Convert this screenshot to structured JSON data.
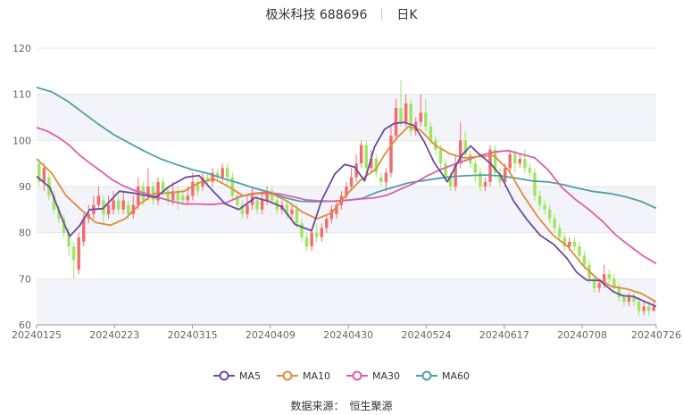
{
  "header": {
    "title": "极米科技 688696",
    "period": "日K"
  },
  "source": {
    "label": "数据来源：",
    "value": "恒生聚源"
  },
  "colors": {
    "up": "#f26d6d",
    "down": "#9ee65f",
    "grid": "#e6e6e6",
    "band": "#f3f4f9",
    "ma5": "#6b4a9e",
    "ma10": "#e08a3c",
    "ma30": "#d95fae",
    "ma60": "#4f9fa6"
  },
  "chart_data": {
    "type": "candlestick",
    "ylim": [
      60,
      120
    ],
    "yticks": [
      60,
      70,
      80,
      90,
      100,
      110,
      120
    ],
    "xtick_labels": [
      "20240125",
      "20240223",
      "20240315",
      "20240409",
      "20240430",
      "20240524",
      "20240617",
      "20240708",
      "20240726"
    ],
    "xtick_positions": [
      0,
      20,
      40,
      60,
      80,
      100,
      120,
      140,
      159
    ],
    "legend": [
      "MA5",
      "MA10",
      "MA30",
      "MA60"
    ],
    "candles": [
      [
        95,
        91,
        96,
        90
      ],
      [
        91,
        94,
        95,
        89
      ],
      [
        92,
        88,
        93,
        87
      ],
      [
        88,
        85,
        89,
        84
      ],
      [
        85,
        83,
        86,
        82
      ],
      [
        83,
        80,
        84,
        79
      ],
      [
        80,
        77,
        81,
        75
      ],
      [
        77,
        74,
        78,
        70
      ],
      [
        72,
        79,
        80,
        71
      ],
      [
        78,
        83,
        84,
        77
      ],
      [
        83,
        84,
        86,
        82
      ],
      [
        84,
        86,
        88,
        83
      ],
      [
        86,
        88,
        90,
        85
      ],
      [
        87,
        84,
        88,
        82
      ],
      [
        84,
        86,
        88,
        83
      ],
      [
        85,
        87,
        89,
        84
      ],
      [
        87,
        85,
        88,
        84
      ],
      [
        85,
        87,
        89,
        84
      ],
      [
        86,
        84,
        87,
        83
      ],
      [
        84,
        86,
        88,
        83
      ],
      [
        86,
        90,
        92,
        85
      ],
      [
        90,
        87,
        91,
        86
      ],
      [
        88,
        90,
        94,
        87
      ],
      [
        90,
        87,
        91,
        86
      ],
      [
        87,
        91,
        92,
        86
      ],
      [
        91,
        89,
        92,
        88
      ],
      [
        89,
        87,
        90,
        86
      ],
      [
        87,
        89,
        91,
        86
      ],
      [
        89,
        87,
        90,
        85
      ],
      [
        88,
        87,
        89,
        86
      ],
      [
        87,
        88,
        90,
        86
      ],
      [
        88,
        91,
        93,
        87
      ],
      [
        91,
        89,
        92,
        88
      ],
      [
        90,
        92,
        93,
        89
      ],
      [
        92,
        91,
        93,
        90
      ],
      [
        91,
        93,
        94,
        90
      ],
      [
        93,
        92,
        94,
        91
      ],
      [
        92,
        94,
        95,
        91
      ],
      [
        94,
        92,
        95,
        90
      ],
      [
        92,
        88,
        93,
        87
      ],
      [
        88,
        86,
        89,
        85
      ],
      [
        86,
        84,
        87,
        83
      ],
      [
        84,
        86,
        88,
        83
      ],
      [
        86,
        88,
        90,
        85
      ],
      [
        87,
        85,
        88,
        84
      ],
      [
        85,
        87,
        89,
        84
      ],
      [
        87,
        89,
        90,
        86
      ],
      [
        89,
        87,
        90,
        86
      ],
      [
        87,
        85,
        88,
        84
      ],
      [
        85,
        86,
        87,
        84
      ],
      [
        86,
        84,
        87,
        83
      ],
      [
        84,
        85,
        86,
        83
      ],
      [
        85,
        82,
        86,
        81
      ],
      [
        82,
        79,
        83,
        78
      ],
      [
        79,
        77,
        80,
        76
      ],
      [
        77,
        80,
        81,
        76
      ],
      [
        80,
        79,
        82,
        78
      ],
      [
        79,
        81,
        82,
        78
      ],
      [
        81,
        83,
        84,
        80
      ],
      [
        83,
        85,
        86,
        82
      ],
      [
        84,
        86,
        87,
        83
      ],
      [
        86,
        88,
        89,
        85
      ],
      [
        88,
        90,
        91,
        87
      ],
      [
        90,
        92,
        94,
        89
      ],
      [
        92,
        95,
        97,
        91
      ],
      [
        95,
        99,
        100,
        94
      ],
      [
        99,
        94,
        100,
        93
      ],
      [
        94,
        96,
        98,
        93
      ],
      [
        96,
        93,
        97,
        92
      ],
      [
        92,
        91,
        93,
        90
      ],
      [
        91,
        93,
        94,
        89
      ],
      [
        93,
        101,
        103,
        92
      ],
      [
        101,
        107,
        109,
        100
      ],
      [
        107,
        104,
        113,
        103
      ],
      [
        104,
        108,
        110,
        103
      ],
      [
        108,
        102,
        109,
        101
      ],
      [
        102,
        104,
        105,
        101
      ],
      [
        104,
        106,
        110,
        103
      ],
      [
        106,
        103,
        109,
        102
      ],
      [
        103,
        100,
        104,
        99
      ],
      [
        100,
        98,
        101,
        97
      ],
      [
        98,
        95,
        99,
        94
      ],
      [
        95,
        92,
        96,
        91
      ],
      [
        92,
        90,
        93,
        89
      ],
      [
        90,
        95,
        97,
        89
      ],
      [
        95,
        100,
        104,
        94
      ],
      [
        100,
        97,
        102,
        96
      ],
      [
        97,
        95,
        98,
        94
      ],
      [
        95,
        93,
        96,
        91
      ],
      [
        93,
        90,
        94,
        89
      ],
      [
        90,
        91,
        92,
        89
      ],
      [
        91,
        98,
        99,
        90
      ],
      [
        98,
        93,
        99,
        92
      ],
      [
        93,
        91,
        94,
        90
      ],
      [
        91,
        94,
        95,
        90
      ],
      [
        94,
        97,
        98,
        93
      ],
      [
        97,
        95,
        98,
        93
      ],
      [
        95,
        96,
        97,
        94
      ],
      [
        96,
        94,
        98,
        93
      ],
      [
        94,
        93,
        95,
        92
      ],
      [
        93,
        88,
        94,
        87
      ],
      [
        88,
        86,
        89,
        85
      ],
      [
        86,
        85,
        87,
        84
      ],
      [
        85,
        83,
        86,
        82
      ],
      [
        83,
        81,
        84,
        80
      ],
      [
        81,
        79,
        82,
        78
      ],
      [
        79,
        77,
        80,
        76
      ],
      [
        77,
        78,
        79,
        76
      ],
      [
        78,
        77,
        79,
        76
      ],
      [
        77,
        75,
        78,
        74
      ],
      [
        75,
        73,
        76,
        72
      ],
      [
        73,
        70,
        74,
        69
      ],
      [
        70,
        68,
        71,
        67
      ],
      [
        68,
        69,
        70,
        67
      ],
      [
        69,
        71,
        73,
        68
      ],
      [
        71,
        70,
        72,
        69
      ],
      [
        70,
        68,
        71,
        67
      ],
      [
        68,
        66,
        69,
        65
      ],
      [
        66,
        65,
        67,
        64
      ],
      [
        65,
        66,
        67,
        64
      ],
      [
        66,
        65,
        67,
        64
      ],
      [
        65,
        63,
        66,
        62
      ],
      [
        63,
        64,
        65,
        62
      ],
      [
        64,
        63,
        65,
        62
      ],
      [
        63,
        64,
        65,
        63
      ]
    ],
    "ma5": [
      [
        0,
        92.2
      ],
      [
        4,
        89.8
      ],
      [
        8,
        82.5
      ],
      [
        10,
        79.2
      ],
      [
        13,
        81.5
      ],
      [
        16,
        85
      ],
      [
        20,
        85.2
      ],
      [
        25,
        89
      ],
      [
        30,
        88.5
      ],
      [
        36,
        87.6
      ],
      [
        40,
        90
      ],
      [
        45,
        92
      ],
      [
        49,
        92.4
      ],
      [
        53,
        89.2
      ],
      [
        57,
        86.2
      ],
      [
        61,
        85
      ],
      [
        66,
        87.6
      ],
      [
        70,
        86.8
      ],
      [
        74,
        85.6
      ],
      [
        78,
        81.8
      ],
      [
        83,
        80.4
      ],
      [
        86,
        87
      ],
      [
        90,
        92.7
      ],
      [
        93,
        94.8
      ],
      [
        96,
        94.2
      ],
      [
        99,
        91.2
      ],
      [
        102,
        98.6
      ],
      [
        105,
        102.4
      ],
      [
        108,
        103.7
      ],
      [
        111,
        103.9
      ],
      [
        114,
        103.2
      ],
      [
        117,
        99.7
      ],
      [
        120,
        95.2
      ],
      [
        124,
        91
      ],
      [
        128,
        96.5
      ],
      [
        131,
        98.8
      ],
      [
        133,
        97.4
      ],
      [
        137,
        95
      ],
      [
        140,
        92.4
      ],
      [
        144,
        86.8
      ],
      [
        148,
        82.8
      ],
      [
        152,
        79.4
      ],
      [
        156,
        77.5
      ],
      [
        160,
        74.5
      ],
      [
        163,
        71.4
      ],
      [
        166,
        69.7
      ],
      [
        170,
        69.6
      ],
      [
        174,
        67.2
      ],
      [
        177,
        66.3
      ],
      [
        180,
        66.2
      ],
      [
        184,
        64.9
      ],
      [
        187,
        64
      ]
    ],
    "ma10": [
      [
        0,
        96
      ],
      [
        5,
        93
      ],
      [
        10,
        88
      ],
      [
        15,
        85
      ],
      [
        20,
        82.2
      ],
      [
        25,
        81.6
      ],
      [
        30,
        83
      ],
      [
        35,
        86.2
      ],
      [
        40,
        88.5
      ],
      [
        45,
        88.6
      ],
      [
        50,
        89
      ],
      [
        55,
        90.8
      ],
      [
        60,
        91.7
      ],
      [
        65,
        90
      ],
      [
        70,
        88
      ],
      [
        75,
        88.5
      ],
      [
        80,
        88.4
      ],
      [
        85,
        86.8
      ],
      [
        90,
        84.5
      ],
      [
        95,
        83
      ],
      [
        100,
        84.3
      ],
      [
        105,
        88.2
      ],
      [
        110,
        91.5
      ],
      [
        115,
        93.8
      ],
      [
        118,
        97
      ],
      [
        122,
        100.5
      ],
      [
        126,
        103
      ],
      [
        130,
        102.3
      ],
      [
        135,
        99
      ],
      [
        140,
        97.1
      ],
      [
        145,
        96.2
      ],
      [
        150,
        96.5
      ],
      [
        155,
        96.7
      ],
      [
        160,
        93.5
      ],
      [
        165,
        88
      ],
      [
        170,
        83.3
      ],
      [
        175,
        79.5
      ],
      [
        180,
        77
      ],
      [
        185,
        73
      ],
      [
        190,
        70
      ],
      [
        195,
        68.3
      ],
      [
        200,
        67.8
      ],
      [
        205,
        66.8
      ],
      [
        210,
        65
      ]
    ],
    "ma30": [
      [
        0,
        102.8
      ],
      [
        4,
        102
      ],
      [
        8,
        100.7
      ],
      [
        12,
        99
      ],
      [
        16,
        96.8
      ],
      [
        20,
        95
      ],
      [
        24,
        93.3
      ],
      [
        28,
        91.5
      ],
      [
        32,
        90.2
      ],
      [
        36,
        89.2
      ],
      [
        40,
        88.6
      ],
      [
        45,
        87.7
      ],
      [
        50,
        86.8
      ],
      [
        55,
        86.2
      ],
      [
        60,
        86.2
      ],
      [
        65,
        86.1
      ],
      [
        70,
        86.4
      ],
      [
        75,
        87.7
      ],
      [
        80,
        88.5
      ],
      [
        85,
        88.7
      ],
      [
        90,
        88.4
      ],
      [
        95,
        87.8
      ],
      [
        100,
        87.1
      ],
      [
        105,
        86.9
      ],
      [
        110,
        86.8
      ],
      [
        115,
        87
      ],
      [
        120,
        87.3
      ],
      [
        125,
        87.5
      ],
      [
        130,
        88.1
      ],
      [
        135,
        89.4
      ],
      [
        140,
        90.7
      ],
      [
        145,
        92.3
      ],
      [
        150,
        93.7
      ],
      [
        155,
        94.8
      ],
      [
        160,
        95.8
      ],
      [
        165,
        96.8
      ],
      [
        170,
        97.5
      ],
      [
        175,
        97.8
      ],
      [
        180,
        97
      ],
      [
        185,
        96.2
      ],
      [
        190,
        93.5
      ],
      [
        195,
        89.8
      ],
      [
        200,
        87.2
      ],
      [
        205,
        85
      ],
      [
        210,
        82.5
      ],
      [
        215,
        79.5
      ],
      [
        220,
        77.2
      ],
      [
        225,
        75
      ],
      [
        230,
        73.3
      ]
    ],
    "ma60": [
      [
        0,
        111.5
      ],
      [
        10,
        110.5
      ],
      [
        20,
        108.5
      ],
      [
        30,
        106
      ],
      [
        40,
        103.5
      ],
      [
        50,
        101.2
      ],
      [
        60,
        99.4
      ],
      [
        70,
        97.6
      ],
      [
        80,
        96
      ],
      [
        90,
        94.8
      ],
      [
        100,
        93.7
      ],
      [
        110,
        92.9
      ],
      [
        120,
        91.8
      ],
      [
        130,
        90.8
      ],
      [
        140,
        89.7
      ],
      [
        150,
        88.8
      ],
      [
        160,
        87.6
      ],
      [
        170,
        86.8
      ],
      [
        180,
        86.7
      ],
      [
        190,
        86.8
      ],
      [
        200,
        87
      ],
      [
        210,
        87.4
      ],
      [
        220,
        88.8
      ],
      [
        230,
        89.8
      ],
      [
        240,
        90.8
      ],
      [
        250,
        91.3
      ],
      [
        260,
        91.8
      ],
      [
        270,
        92.2
      ],
      [
        280,
        92.4
      ],
      [
        290,
        92.5
      ],
      [
        300,
        92.3
      ],
      [
        310,
        91.8
      ],
      [
        320,
        91.2
      ],
      [
        330,
        91
      ],
      [
        340,
        90.4
      ],
      [
        350,
        89.6
      ],
      [
        360,
        88.9
      ],
      [
        370,
        88.5
      ],
      [
        380,
        87.8
      ],
      [
        390,
        86.8
      ],
      [
        400,
        85.3
      ]
    ]
  }
}
